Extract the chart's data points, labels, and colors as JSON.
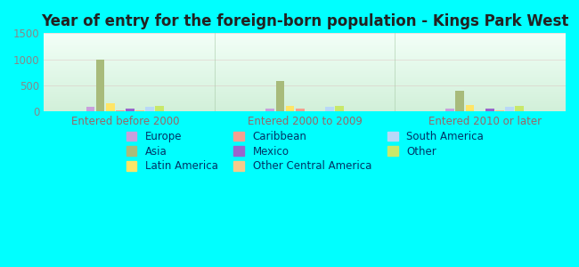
{
  "title": "Year of entry for the foreign-born population - Kings Park West",
  "groups": [
    "Entered before 2000",
    "Entered 2000 to 2009",
    "Entered 2010 or later"
  ],
  "categories": [
    "Europe",
    "Asia",
    "Latin America",
    "Caribbean",
    "Mexico",
    "Other Central America",
    "South America",
    "Other"
  ],
  "values": {
    "Entered before 2000": [
      100,
      1000,
      160,
      18,
      50,
      28,
      100,
      110
    ],
    "Entered 2000 to 2009": [
      55,
      590,
      110,
      50,
      8,
      12,
      90,
      115
    ],
    "Entered 2010 or later": [
      50,
      395,
      130,
      12,
      60,
      18,
      90,
      110
    ]
  },
  "colors": {
    "Europe": "#c9a0dc",
    "Asia": "#a8bb7b",
    "Latin America": "#ffe566",
    "Caribbean": "#f4a090",
    "Mexico": "#9966cc",
    "Other Central America": "#f5ca8a",
    "South America": "#b8d8f8",
    "Other": "#c8e86a"
  },
  "legend_order": [
    [
      "Europe",
      "Caribbean",
      "South America"
    ],
    [
      "Asia",
      "Mexico",
      "Other"
    ],
    [
      "Latin America",
      "Other Central America"
    ]
  ],
  "bg_color": "#00ffff",
  "ylim": [
    0,
    1500
  ],
  "yticks": [
    0,
    500,
    1000,
    1500
  ],
  "bar_width": 0.055,
  "title_fontsize": 12,
  "tick_fontsize": 8.5,
  "legend_fontsize": 8.5,
  "group_positions": [
    1.0,
    2.0,
    3.0
  ],
  "xlim": [
    0.55,
    3.45
  ]
}
